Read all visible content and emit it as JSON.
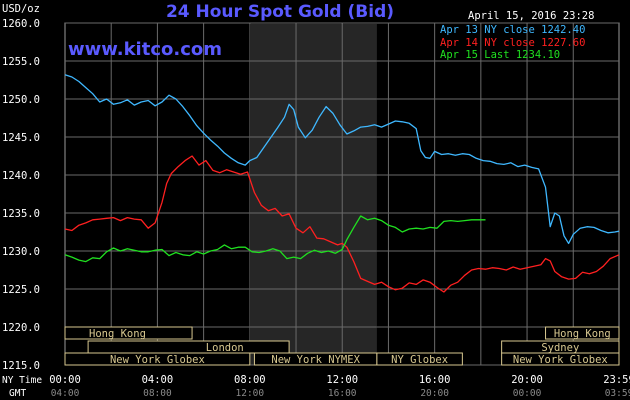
{
  "header": {
    "title": "24 Hour Spot Gold (Bid)",
    "site": "www.kitco.com",
    "timestamp": "April 15, 2016 23:28",
    "unit": "USD/oz"
  },
  "legend": [
    {
      "label": "Apr 13 NY close 1242.40",
      "color": "#3fb8ff"
    },
    {
      "label": "Apr 14 NY close 1227.60",
      "color": "#ff2020"
    },
    {
      "label": "Apr 15 Last 1234.10",
      "color": "#20e020"
    }
  ],
  "markets": [
    {
      "label": "Hong Kong",
      "row": 0,
      "start": 0,
      "end": 5.5
    },
    {
      "label": "Hong Kong",
      "row": 0,
      "start": 20.8,
      "end": 23.98
    },
    {
      "label": "London",
      "row": 1,
      "start": 1,
      "end": 9.7
    },
    {
      "label": "Sydney",
      "row": 1,
      "start": 18.9,
      "end": 23.98
    },
    {
      "label": "New York Globex",
      "row": 2,
      "start": 0,
      "end": 8
    },
    {
      "label": "New York NYMEX",
      "row": 2,
      "start": 8.2,
      "end": 13.5
    },
    {
      "label": "NY Globex",
      "row": 2,
      "start": 13.5,
      "end": 17.2
    },
    {
      "label": "New York Globex",
      "row": 2,
      "start": 18.9,
      "end": 23.98
    }
  ],
  "time_axis": {
    "ny_label": "NY Time",
    "gmt_label": "GMT",
    "ny_ticks": [
      {
        "label": "00:00",
        "hour": 0
      },
      {
        "label": "04:00",
        "hour": 4
      },
      {
        "label": "08:00",
        "hour": 8
      },
      {
        "label": "12:00",
        "hour": 12
      },
      {
        "label": "16:00",
        "hour": 16
      },
      {
        "label": "20:00",
        "hour": 20
      },
      {
        "label": "23:59",
        "hour": 23.98
      }
    ],
    "gmt_ticks": [
      {
        "label": "04:00",
        "hour": 0
      },
      {
        "label": "08:00",
        "hour": 4
      },
      {
        "label": "12:00",
        "hour": 8
      },
      {
        "label": "16:00",
        "hour": 12
      },
      {
        "label": "20:00",
        "hour": 16
      },
      {
        "label": "00:00",
        "hour": 20
      },
      {
        "label": "03:59",
        "hour": 23.98
      }
    ]
  },
  "chart_data": {
    "type": "line",
    "title": "24 Hour Spot Gold (Bid)",
    "ylabel": "USD/oz",
    "ylim": [
      1215.0,
      1260.0
    ],
    "yticks": [
      {
        "value": 1260.0,
        "label": "1260.0"
      },
      {
        "value": 1255.0,
        "label": "1255.0"
      },
      {
        "value": 1250.0,
        "label": "1250.0"
      },
      {
        "value": 1245.0,
        "label": "1245.0"
      },
      {
        "value": 1240.0,
        "label": "1240.0"
      },
      {
        "value": 1235.0,
        "label": "1235.0"
      },
      {
        "value": 1230.0,
        "label": "1230.0"
      },
      {
        "value": 1225.0,
        "label": "1225.0"
      },
      {
        "value": 1220.0,
        "label": "1220.0"
      },
      {
        "value": 1215.0,
        "label": "1215.0"
      }
    ],
    "xlim": [
      0,
      23.98
    ],
    "x_gridlines": [
      2,
      4,
      6,
      8,
      10,
      12,
      14,
      16,
      18,
      20,
      22
    ],
    "grid": true,
    "highlight_range": [
      8,
      13.5
    ],
    "series": [
      {
        "name": "Apr 13 NY close 1242.40",
        "color": "#3fb8ff",
        "points": [
          [
            0,
            1253.2
          ],
          [
            0.3,
            1252.9
          ],
          [
            0.6,
            1252.3
          ],
          [
            0.9,
            1251.5
          ],
          [
            1.2,
            1250.7
          ],
          [
            1.5,
            1249.6
          ],
          [
            1.8,
            1250.0
          ],
          [
            2.1,
            1249.3
          ],
          [
            2.4,
            1249.5
          ],
          [
            2.7,
            1249.9
          ],
          [
            3.0,
            1249.2
          ],
          [
            3.3,
            1249.6
          ],
          [
            3.6,
            1249.8
          ],
          [
            3.9,
            1249.1
          ],
          [
            4.2,
            1249.6
          ],
          [
            4.5,
            1250.5
          ],
          [
            4.8,
            1250.0
          ],
          [
            5.1,
            1249.0
          ],
          [
            5.4,
            1247.8
          ],
          [
            5.7,
            1246.5
          ],
          [
            6.0,
            1245.5
          ],
          [
            6.3,
            1244.6
          ],
          [
            6.6,
            1243.8
          ],
          [
            6.9,
            1242.9
          ],
          [
            7.2,
            1242.2
          ],
          [
            7.5,
            1241.6
          ],
          [
            7.8,
            1241.3
          ],
          [
            8.0,
            1241.9
          ],
          [
            8.3,
            1242.3
          ],
          [
            8.6,
            1243.6
          ],
          [
            8.9,
            1244.9
          ],
          [
            9.2,
            1246.2
          ],
          [
            9.5,
            1247.6
          ],
          [
            9.7,
            1249.3
          ],
          [
            9.9,
            1248.6
          ],
          [
            10.1,
            1246.3
          ],
          [
            10.4,
            1244.9
          ],
          [
            10.7,
            1245.9
          ],
          [
            11.0,
            1247.6
          ],
          [
            11.3,
            1249.0
          ],
          [
            11.6,
            1248.1
          ],
          [
            11.9,
            1246.6
          ],
          [
            12.2,
            1245.4
          ],
          [
            12.5,
            1245.8
          ],
          [
            12.8,
            1246.3
          ],
          [
            13.1,
            1246.4
          ],
          [
            13.4,
            1246.6
          ],
          [
            13.7,
            1246.3
          ],
          [
            14.0,
            1246.7
          ],
          [
            14.3,
            1247.1
          ],
          [
            14.6,
            1247.0
          ],
          [
            14.9,
            1246.8
          ],
          [
            15.2,
            1246.1
          ],
          [
            15.4,
            1243.2
          ],
          [
            15.6,
            1242.3
          ],
          [
            15.8,
            1242.2
          ],
          [
            16.0,
            1243.1
          ],
          [
            16.3,
            1242.7
          ],
          [
            16.6,
            1242.8
          ],
          [
            16.9,
            1242.6
          ],
          [
            17.2,
            1242.8
          ],
          [
            17.5,
            1242.7
          ],
          [
            17.8,
            1242.2
          ],
          [
            18.1,
            1241.9
          ],
          [
            18.4,
            1241.8
          ],
          [
            18.7,
            1241.5
          ],
          [
            19.0,
            1241.4
          ],
          [
            19.3,
            1241.6
          ],
          [
            19.6,
            1241.1
          ],
          [
            19.9,
            1241.3
          ],
          [
            20.2,
            1241.0
          ],
          [
            20.5,
            1240.8
          ],
          [
            20.8,
            1238.4
          ],
          [
            21.0,
            1233.2
          ],
          [
            21.2,
            1235.0
          ],
          [
            21.4,
            1234.6
          ],
          [
            21.6,
            1232.0
          ],
          [
            21.8,
            1231.0
          ],
          [
            22.0,
            1232.2
          ],
          [
            22.3,
            1233.0
          ],
          [
            22.6,
            1233.2
          ],
          [
            22.9,
            1233.1
          ],
          [
            23.2,
            1232.7
          ],
          [
            23.5,
            1232.4
          ],
          [
            23.8,
            1232.5
          ],
          [
            23.98,
            1232.6
          ]
        ]
      },
      {
        "name": "Apr 14 NY close 1227.60",
        "color": "#ff2020",
        "points": [
          [
            0,
            1232.9
          ],
          [
            0.3,
            1232.7
          ],
          [
            0.6,
            1233.4
          ],
          [
            0.9,
            1233.7
          ],
          [
            1.2,
            1234.1
          ],
          [
            1.5,
            1234.2
          ],
          [
            1.8,
            1234.3
          ],
          [
            2.1,
            1234.4
          ],
          [
            2.4,
            1234.0
          ],
          [
            2.7,
            1234.4
          ],
          [
            3.0,
            1234.2
          ],
          [
            3.3,
            1234.1
          ],
          [
            3.6,
            1233.0
          ],
          [
            3.9,
            1233.7
          ],
          [
            4.2,
            1236.4
          ],
          [
            4.4,
            1238.9
          ],
          [
            4.6,
            1240.2
          ],
          [
            4.9,
            1241.1
          ],
          [
            5.2,
            1241.9
          ],
          [
            5.5,
            1242.5
          ],
          [
            5.8,
            1241.3
          ],
          [
            6.1,
            1241.9
          ],
          [
            6.4,
            1240.6
          ],
          [
            6.7,
            1240.3
          ],
          [
            7.0,
            1240.7
          ],
          [
            7.3,
            1240.4
          ],
          [
            7.6,
            1240.1
          ],
          [
            7.9,
            1240.4
          ],
          [
            8.2,
            1237.7
          ],
          [
            8.5,
            1236.0
          ],
          [
            8.8,
            1235.3
          ],
          [
            9.1,
            1235.6
          ],
          [
            9.4,
            1234.6
          ],
          [
            9.7,
            1234.9
          ],
          [
            10.0,
            1233.0
          ],
          [
            10.3,
            1232.4
          ],
          [
            10.6,
            1233.2
          ],
          [
            10.9,
            1231.7
          ],
          [
            11.2,
            1231.6
          ],
          [
            11.5,
            1231.2
          ],
          [
            11.8,
            1230.8
          ],
          [
            12.0,
            1231.0
          ],
          [
            12.2,
            1230.5
          ],
          [
            12.5,
            1228.6
          ],
          [
            12.8,
            1226.4
          ],
          [
            13.1,
            1226.0
          ],
          [
            13.4,
            1225.6
          ],
          [
            13.7,
            1225.9
          ],
          [
            14.0,
            1225.3
          ],
          [
            14.3,
            1224.9
          ],
          [
            14.6,
            1225.1
          ],
          [
            14.9,
            1225.8
          ],
          [
            15.2,
            1225.6
          ],
          [
            15.5,
            1226.2
          ],
          [
            15.8,
            1225.9
          ],
          [
            16.1,
            1225.2
          ],
          [
            16.4,
            1224.6
          ],
          [
            16.7,
            1225.5
          ],
          [
            17.0,
            1225.9
          ],
          [
            17.3,
            1226.8
          ],
          [
            17.6,
            1227.5
          ],
          [
            17.9,
            1227.7
          ],
          [
            18.2,
            1227.6
          ],
          [
            18.5,
            1227.8
          ],
          [
            18.8,
            1227.7
          ],
          [
            19.1,
            1227.5
          ],
          [
            19.4,
            1227.9
          ],
          [
            19.7,
            1227.6
          ],
          [
            20.0,
            1227.8
          ],
          [
            20.3,
            1228.0
          ],
          [
            20.6,
            1228.2
          ],
          [
            20.8,
            1229.0
          ],
          [
            21.0,
            1228.7
          ],
          [
            21.2,
            1227.3
          ],
          [
            21.5,
            1226.6
          ],
          [
            21.8,
            1226.3
          ],
          [
            22.1,
            1226.4
          ],
          [
            22.4,
            1227.2
          ],
          [
            22.7,
            1227.0
          ],
          [
            23.0,
            1227.3
          ],
          [
            23.3,
            1228.0
          ],
          [
            23.6,
            1229.0
          ],
          [
            23.98,
            1229.5
          ]
        ]
      },
      {
        "name": "Apr 15 Last 1234.10",
        "color": "#20e020",
        "points": [
          [
            0,
            1229.5
          ],
          [
            0.3,
            1229.2
          ],
          [
            0.6,
            1228.8
          ],
          [
            0.9,
            1228.6
          ],
          [
            1.2,
            1229.1
          ],
          [
            1.5,
            1229.0
          ],
          [
            1.8,
            1229.9
          ],
          [
            2.1,
            1230.4
          ],
          [
            2.4,
            1230.0
          ],
          [
            2.7,
            1230.3
          ],
          [
            3.0,
            1230.1
          ],
          [
            3.3,
            1229.9
          ],
          [
            3.6,
            1229.9
          ],
          [
            3.9,
            1230.1
          ],
          [
            4.2,
            1230.2
          ],
          [
            4.5,
            1229.4
          ],
          [
            4.8,
            1229.8
          ],
          [
            5.1,
            1229.5
          ],
          [
            5.4,
            1229.4
          ],
          [
            5.7,
            1229.9
          ],
          [
            6.0,
            1229.6
          ],
          [
            6.3,
            1230.0
          ],
          [
            6.6,
            1230.2
          ],
          [
            6.9,
            1230.8
          ],
          [
            7.2,
            1230.3
          ],
          [
            7.5,
            1230.5
          ],
          [
            7.8,
            1230.5
          ],
          [
            8.1,
            1229.9
          ],
          [
            8.4,
            1229.8
          ],
          [
            8.7,
            1230.0
          ],
          [
            9.0,
            1230.3
          ],
          [
            9.3,
            1230.0
          ],
          [
            9.6,
            1229.0
          ],
          [
            9.9,
            1229.2
          ],
          [
            10.2,
            1229.0
          ],
          [
            10.5,
            1229.7
          ],
          [
            10.8,
            1230.1
          ],
          [
            11.1,
            1229.8
          ],
          [
            11.4,
            1230.0
          ],
          [
            11.7,
            1229.7
          ],
          [
            12.0,
            1230.2
          ],
          [
            12.2,
            1231.5
          ],
          [
            12.5,
            1233.1
          ],
          [
            12.8,
            1234.6
          ],
          [
            13.1,
            1234.1
          ],
          [
            13.4,
            1234.3
          ],
          [
            13.7,
            1234.0
          ],
          [
            14.0,
            1233.4
          ],
          [
            14.3,
            1233.1
          ],
          [
            14.6,
            1232.5
          ],
          [
            14.9,
            1232.9
          ],
          [
            15.2,
            1233.0
          ],
          [
            15.5,
            1232.9
          ],
          [
            15.8,
            1233.1
          ],
          [
            16.1,
            1233.0
          ],
          [
            16.4,
            1233.9
          ],
          [
            16.7,
            1234.0
          ],
          [
            17.0,
            1233.9
          ],
          [
            17.3,
            1234.0
          ],
          [
            17.6,
            1234.1
          ],
          [
            17.9,
            1234.1
          ],
          [
            18.2,
            1234.1
          ]
        ]
      }
    ]
  }
}
